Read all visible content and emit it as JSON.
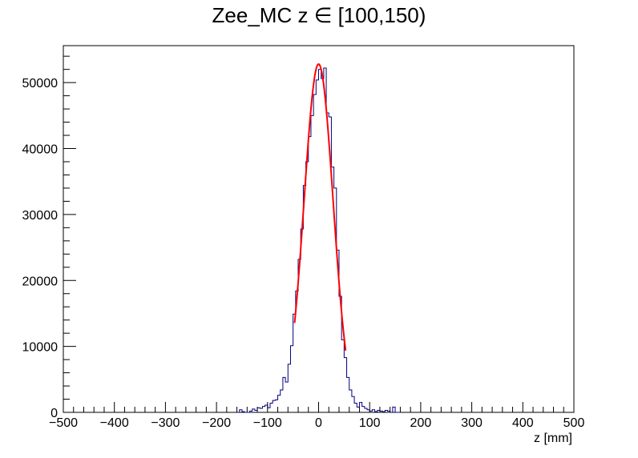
{
  "chart_data": {
    "type": "histogram",
    "title": "Zee_MC z ∈ [100,150)",
    "xlabel": "z [mm]",
    "ylabel": "",
    "xlim": [
      -500,
      500
    ],
    "ylim": [
      0,
      55600
    ],
    "x_ticks": [
      -500,
      -400,
      -300,
      -200,
      -100,
      0,
      100,
      200,
      300,
      400,
      500
    ],
    "x_tick_labels": [
      "−500",
      "−400",
      "−300",
      "−200",
      "−100",
      "0",
      "100",
      "200",
      "300",
      "400",
      "500"
    ],
    "y_ticks": [
      0,
      10000,
      20000,
      30000,
      40000,
      50000
    ],
    "y_tick_labels": [
      "0",
      "10000",
      "20000",
      "30000",
      "40000",
      "50000"
    ],
    "series": [
      {
        "kind": "histogram",
        "color": "#00007f",
        "bin_width": 5,
        "bins": [
          [
            -160,
            0
          ],
          [
            -155,
            400
          ],
          [
            -150,
            100
          ],
          [
            -145,
            0
          ],
          [
            -140,
            0
          ],
          [
            -135,
            200
          ],
          [
            -130,
            500
          ],
          [
            -125,
            300
          ],
          [
            -120,
            700
          ],
          [
            -115,
            600
          ],
          [
            -110,
            900
          ],
          [
            -105,
            1100
          ],
          [
            -100,
            700
          ],
          [
            -95,
            1400
          ],
          [
            -90,
            1800
          ],
          [
            -85,
            1900
          ],
          [
            -80,
            2600
          ],
          [
            -75,
            3400
          ],
          [
            -70,
            5300
          ],
          [
            -65,
            4600
          ],
          [
            -60,
            7300
          ],
          [
            -55,
            10100
          ],
          [
            -50,
            14900
          ],
          [
            -45,
            18400
          ],
          [
            -40,
            23200
          ],
          [
            -35,
            27800
          ],
          [
            -30,
            34400
          ],
          [
            -25,
            38000
          ],
          [
            -20,
            41800
          ],
          [
            -15,
            45000
          ],
          [
            -10,
            48200
          ],
          [
            -5,
            50400
          ],
          [
            0,
            52000
          ],
          [
            5,
            50600
          ],
          [
            10,
            52200
          ],
          [
            15,
            45400
          ],
          [
            20,
            44800
          ],
          [
            25,
            37200
          ],
          [
            30,
            34000
          ],
          [
            35,
            24600
          ],
          [
            40,
            17600
          ],
          [
            45,
            11000
          ],
          [
            50,
            8300
          ],
          [
            55,
            5300
          ],
          [
            60,
            3400
          ],
          [
            65,
            2400
          ],
          [
            70,
            1400
          ],
          [
            75,
            800
          ],
          [
            80,
            1500
          ],
          [
            85,
            900
          ],
          [
            90,
            600
          ],
          [
            95,
            400
          ],
          [
            100,
            200
          ],
          [
            105,
            400
          ],
          [
            110,
            100
          ],
          [
            115,
            300
          ],
          [
            120,
            200
          ],
          [
            125,
            100
          ],
          [
            130,
            300
          ],
          [
            135,
            200
          ],
          [
            140,
            0
          ],
          [
            145,
            800
          ],
          [
            150,
            0
          ],
          [
            155,
            0
          ]
        ]
      },
      {
        "kind": "fit",
        "color": "#ff0000",
        "function": "gaussian",
        "amplitude": 52800,
        "mean": 0,
        "sigma": 28.5,
        "range": [
          -47,
          53
        ]
      }
    ],
    "grid": false,
    "legend": "none"
  }
}
